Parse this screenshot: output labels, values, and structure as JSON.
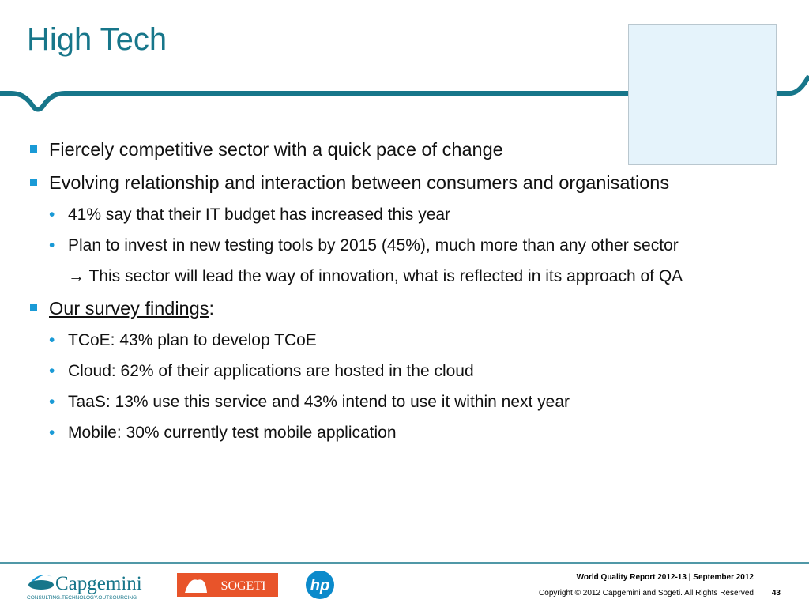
{
  "header": {
    "title": "High Tech"
  },
  "bullets": [
    {
      "text": "Fiercely competitive sector with a quick pace of change"
    },
    {
      "text": "Evolving relationship and interaction between consumers and organisations",
      "sub": [
        "41% say that their IT budget has increased this year",
        "Plan to invest in new testing tools by 2015 (45%), much more than any other sector"
      ],
      "note": "→ This sector will lead the way of innovation, what is reflected in its approach of QA"
    },
    {
      "text": "Our survey findings",
      "suffix": ":",
      "sub": [
        "TCoE: 43% plan to develop TCoE",
        "Cloud: 62% of their applications are hosted in the cloud",
        "TaaS: 13% use this service and 43% intend to use it within next year",
        "Mobile: 30% currently test mobile application"
      ]
    }
  ],
  "logos": {
    "capgemini": "Capgemini",
    "capgemini_tagline": "CONSULTING.TECHNOLOGY.OUTSOURCING",
    "sogeti": "SOGETI",
    "hp": "hp"
  },
  "footer": {
    "report": "World Quality Report 2012-13 | September 2012",
    "copyright": "Copyright © 2012 Capgemini and Sogeti. All Rights Reserved",
    "page": "43"
  }
}
